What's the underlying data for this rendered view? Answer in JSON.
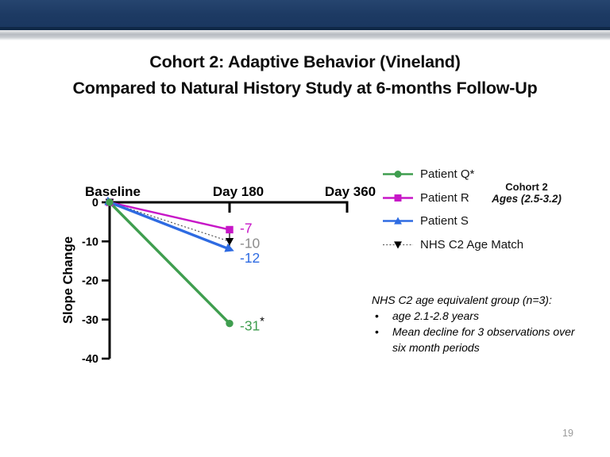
{
  "slide": {
    "title_line1": "Cohort 2: Adaptive Behavior (Vineland)",
    "title_line2": "Compared to Natural History Study at 6-months Follow-Up",
    "page_number": "19"
  },
  "legend": {
    "items": [
      {
        "label": "Patient Q*",
        "color": "#3f9e4f",
        "marker": "circle",
        "line": "solid"
      },
      {
        "label": "Patient R",
        "color": "#c716c7",
        "marker": "square",
        "line": "solid"
      },
      {
        "label": "Patient S",
        "color": "#2e6be2",
        "marker": "triangle-up",
        "line": "solid"
      },
      {
        "label": "NHS C2 Age Match",
        "color": "#555555",
        "marker": "triangle-down",
        "marker_color": "#000000",
        "line": "dotted"
      }
    ]
  },
  "cohort_box": {
    "line1": "Cohort 2",
    "line2": "Ages (2.5-3.2)"
  },
  "note": {
    "heading": "NHS C2 age equivalent group (n=3):",
    "bullets": [
      "age 2.1-2.8 years",
      "Mean decline for 3 observations over six month periods"
    ]
  },
  "chart_data": {
    "type": "line",
    "categories": [
      "Baseline",
      "Day 180",
      "Day 360"
    ],
    "ylabel": "Slope Change",
    "ylim": [
      -40,
      0
    ],
    "yticks": [
      0,
      -10,
      -20,
      -30,
      -40
    ],
    "grid": false,
    "legend_position": "right",
    "series": [
      {
        "name": "Patient R",
        "color": "#c716c7",
        "line": "solid",
        "marker": "square",
        "x": [
          "Baseline",
          "Day 180"
        ],
        "values": [
          0,
          -7
        ],
        "end_label": "-7"
      },
      {
        "name": "NHS C2 Age Match",
        "color": "#555555",
        "line": "dotted",
        "marker": "triangle-down",
        "marker_color": "#000000",
        "x": [
          "Baseline",
          "Day 180"
        ],
        "values": [
          0,
          -10
        ],
        "end_label": "-10",
        "end_label_color": "#8c8c8c",
        "error_bar": [
          -7.5,
          -12.5
        ]
      },
      {
        "name": "Patient S",
        "color": "#2e6be2",
        "line": "solid",
        "marker": "arrow",
        "x": [
          "Baseline",
          "Day 180"
        ],
        "values": [
          0,
          -12
        ],
        "end_label": "-12"
      },
      {
        "name": "Patient Q*",
        "color": "#3f9e4f",
        "line": "solid",
        "marker": "circle",
        "x": [
          "Baseline",
          "Day 180"
        ],
        "values": [
          0,
          -31
        ],
        "end_label": "-31",
        "end_label_suffix": "*"
      }
    ]
  }
}
